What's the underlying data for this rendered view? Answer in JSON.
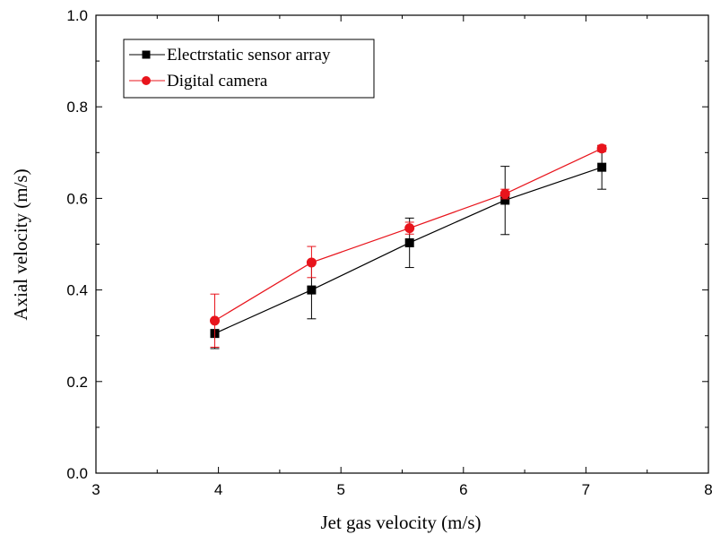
{
  "chart_data": {
    "type": "line",
    "title": "",
    "xlabel": "Jet gas velocity (m/s)",
    "ylabel": "Axial velocity (m/s)",
    "xlim": [
      3,
      8
    ],
    "ylim": [
      0.0,
      1.0
    ],
    "x_ticks": [
      "3",
      "4",
      "5",
      "6",
      "7",
      "8"
    ],
    "y_ticks": [
      "0.0",
      "0.2",
      "0.4",
      "0.6",
      "0.8",
      "1.0"
    ],
    "grid": false,
    "legend_position": "top-left",
    "series": [
      {
        "name": "Electrstatic sensor array",
        "color": "#000000",
        "marker": "square",
        "x": [
          3.97,
          4.76,
          5.56,
          6.34,
          7.13
        ],
        "y": [
          0.305,
          0.4,
          0.503,
          0.596,
          0.668
        ],
        "err_low": [
          0.272,
          0.337,
          0.449,
          0.521,
          0.62
        ],
        "err_high": [
          0.333,
          0.463,
          0.557,
          0.67,
          0.715
        ]
      },
      {
        "name": "Digital camera",
        "color": "#e8141c",
        "marker": "circle",
        "x": [
          3.97,
          4.76,
          5.56,
          6.34,
          7.13
        ],
        "y": [
          0.333,
          0.46,
          0.535,
          0.61,
          0.709
        ],
        "err_low": [
          0.275,
          0.427,
          0.522,
          0.599,
          0.702
        ],
        "err_high": [
          0.391,
          0.495,
          0.548,
          0.62,
          0.716
        ]
      }
    ]
  }
}
